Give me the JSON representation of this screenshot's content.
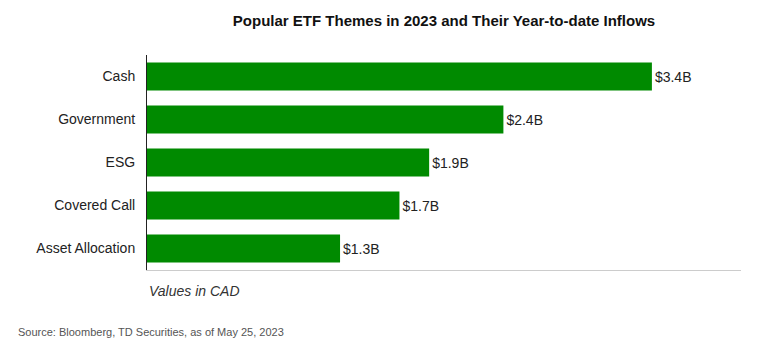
{
  "chart_data": {
    "type": "bar",
    "orientation": "horizontal",
    "title": "Popular ETF Themes in 2023 and Their Year-to-date Inflows",
    "xlabel": "Values in CAD",
    "source": "Source: Bloomberg, TD Securities, as of May 25, 2023",
    "categories": [
      "Cash",
      "Government",
      "ESG",
      "Covered Call",
      "Asset Allocation"
    ],
    "values": [
      3.4,
      2.4,
      1.9,
      1.7,
      1.3
    ],
    "value_labels": [
      "$3.4B",
      "$2.4B",
      "$1.9B",
      "$1.7B",
      "$1.3B"
    ],
    "color": "#008a00",
    "xlim": [
      0,
      4
    ],
    "grid": false,
    "data_labels": true,
    "tick_labels": "y"
  }
}
